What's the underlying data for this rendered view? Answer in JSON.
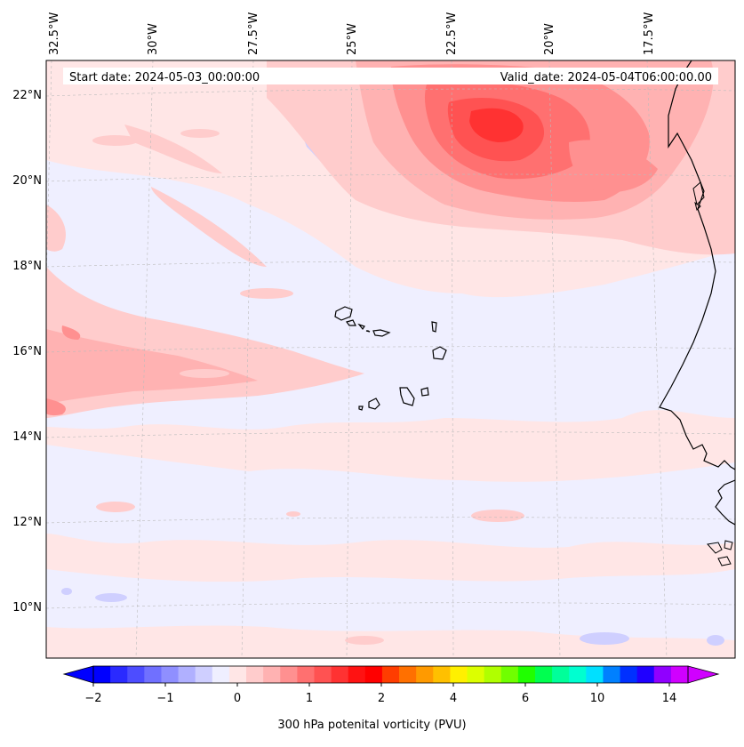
{
  "map": {
    "start_date_label": "Start date: 2024-05-03_00:00:00",
    "valid_date_label": "Valid_date: 2024-05-04T06:00:00.00",
    "lon_labels": [
      "32.5°W",
      "30°W",
      "27.5°W",
      "25°W",
      "22.5°W",
      "20°W",
      "17.5°W"
    ],
    "lat_labels": [
      "22°N",
      "20°N",
      "18°N",
      "16°N",
      "14°N",
      "12°N",
      "10°N"
    ],
    "features": [
      "Cape Verde Islands",
      "West African coastline (Senegal / Gambia / Guinea-Bissau)"
    ]
  },
  "colorbar": {
    "label": "300 hPa potenital vorticity (PVU)",
    "tick_labels": [
      "−2",
      "−1",
      "0",
      "1",
      "2",
      "4",
      "6",
      "10",
      "14"
    ],
    "colors": [
      "#0000ff",
      "#2a2aff",
      "#4d4dff",
      "#7070ff",
      "#8f8fff",
      "#b0b0ff",
      "#cfcfff",
      "#efefff",
      "#ffe6e6",
      "#ffcccc",
      "#ffb2b2",
      "#ff9090",
      "#ff7070",
      "#ff5252",
      "#ff3232",
      "#ff1212",
      "#ff0000",
      "#ff3d00",
      "#ff7000",
      "#ff9a00",
      "#ffc000",
      "#fff000",
      "#dcff00",
      "#b0ff00",
      "#70ff00",
      "#20ff00",
      "#00ff50",
      "#00ff9a",
      "#00ffd0",
      "#00e0ff",
      "#0080ff",
      "#0030ff",
      "#2000ff",
      "#9000ff",
      "#d000ff"
    ]
  }
}
